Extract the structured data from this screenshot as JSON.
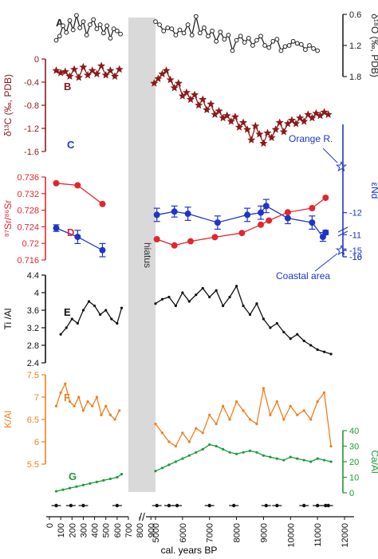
{
  "chart_data": [
    {
      "panel": "A",
      "type": "line",
      "color": "#222222",
      "marker": "circle-open",
      "ylabel": "δ¹⁸O (‰, PDB)",
      "y_axis_side": "right",
      "reversed": true,
      "ylim": [
        0.6,
        1.8
      ],
      "yticks": [
        0.6,
        1.2,
        1.8
      ],
      "x": [
        60,
        90,
        120,
        150,
        180,
        210,
        240,
        270,
        300,
        330,
        360,
        390,
        420,
        450,
        480,
        510,
        540,
        570,
        600,
        630,
        5000,
        5150,
        5300,
        5450,
        5600,
        5750,
        5900,
        6050,
        6200,
        6350,
        6500,
        6650,
        6800,
        6950,
        7100,
        7250,
        7400,
        7550,
        7700,
        7850,
        8000,
        8150,
        8300,
        8450,
        8600,
        8750,
        8900,
        9050,
        9200,
        9350,
        9500,
        9650,
        9800,
        9950,
        10100,
        10250,
        10400,
        10550,
        10700,
        10850,
        11000
      ],
      "y": [
        1.1,
        1.02,
        0.82,
        0.95,
        0.72,
        0.9,
        0.62,
        0.86,
        0.74,
        1.0,
        0.8,
        0.7,
        0.88,
        0.8,
        0.96,
        0.82,
        1.06,
        0.88,
        0.92,
        0.98,
        0.74,
        0.8,
        0.92,
        0.86,
        0.88,
        1.0,
        0.9,
        0.96,
        0.8,
        1.0,
        0.64,
        0.96,
        0.86,
        1.02,
        0.92,
        1.12,
        0.94,
        1.08,
        1.0,
        1.3,
        1.1,
        1.02,
        1.14,
        1.06,
        1.2,
        1.1,
        1.02,
        1.2,
        1.24,
        1.12,
        1.08,
        1.3,
        1.22,
        1.2,
        1.12,
        1.16,
        1.18,
        1.28,
        1.2,
        1.26,
        1.3
      ]
    },
    {
      "panel": "B",
      "type": "line",
      "color": "#8b1a1a",
      "marker": "star",
      "ylabel": "δ¹³C (‰, PDB)",
      "y_axis_side": "left",
      "ylim": [
        -1.6,
        0
      ],
      "yticks": [
        0,
        -0.4,
        -0.8,
        -1.2,
        -1.6
      ],
      "x": [
        60,
        100,
        140,
        180,
        220,
        260,
        300,
        340,
        380,
        420,
        460,
        500,
        540,
        580,
        620,
        4950,
        5100,
        5250,
        5400,
        5550,
        5700,
        5850,
        6000,
        6150,
        6300,
        6450,
        6600,
        6750,
        6900,
        7050,
        7200,
        7350,
        7500,
        7650,
        7800,
        7950,
        8100,
        8250,
        8400,
        8550,
        8700,
        8850,
        9000,
        9150,
        9300,
        9450,
        9600,
        9750,
        9900,
        10050,
        10200,
        10350,
        10500,
        10650,
        10800,
        10950,
        11100,
        11250,
        11400
      ],
      "y": [
        -0.2,
        -0.24,
        -0.22,
        -0.3,
        -0.18,
        -0.32,
        -0.14,
        -0.28,
        -0.2,
        -0.26,
        -0.12,
        -0.28,
        -0.2,
        -0.3,
        -0.18,
        -0.42,
        -0.34,
        -0.26,
        -0.2,
        -0.36,
        -0.5,
        -0.42,
        -0.64,
        -0.58,
        -0.7,
        -0.62,
        -0.8,
        -0.7,
        -0.88,
        -0.78,
        -0.96,
        -0.9,
        -1.02,
        -0.98,
        -1.08,
        -1.0,
        -1.18,
        -1.1,
        -1.22,
        -1.4,
        -1.16,
        -1.3,
        -1.46,
        -1.28,
        -1.36,
        -1.22,
        -1.1,
        -1.26,
        -1.12,
        -1.06,
        -1.12,
        -1.02,
        -1.08,
        -0.96,
        -1.02,
        -0.94,
        -0.98,
        -0.92,
        -0.96
      ]
    },
    {
      "panel": "C",
      "type": "line-errorbar",
      "color": "#1f35c8",
      "marker": "circle-filled",
      "ylabel": "εNd",
      "y_axis_side": "right",
      "reversed": true,
      "ylim": [
        -16,
        -10
      ],
      "yticks": [
        -10,
        -11,
        -12,
        -15,
        -16
      ],
      "axis_break": "between -12 and -15",
      "x": [
        60,
        250,
        470,
        5050,
        5700,
        6200,
        7300,
        8400,
        8900,
        9100,
        9900,
        10800,
        11200,
        11300
      ],
      "y": [
        -11.3,
        -10.9,
        -10.3,
        -11.9,
        -12.05,
        -11.95,
        -11.55,
        -11.9,
        -12.0,
        -12.3,
        -11.75,
        -11.55,
        -10.9,
        -11.1
      ],
      "err": [
        0.15,
        0.3,
        0.3,
        0.3,
        0.25,
        0.3,
        0.3,
        0.3,
        0.3,
        0.3,
        0.25,
        0.3,
        0.2,
        0.1
      ],
      "reference_markers": [
        {
          "label": "Orange R.",
          "y": -10.8
        },
        {
          "label": "Coastal area",
          "y": -15.6
        }
      ]
    },
    {
      "panel": "D",
      "type": "line",
      "color": "#e3262d",
      "marker": "circle-filled",
      "ylabel": "⁸⁷Sr/⁸⁶Sr",
      "y_axis_side": "left",
      "ylim": [
        0.716,
        0.736
      ],
      "yticks": [
        0.736,
        0.732,
        0.728,
        0.724,
        0.72,
        0.716
      ],
      "x": [
        60,
        250,
        470,
        5050,
        5700,
        6300,
        7200,
        8200,
        8900,
        9200,
        9900,
        10800,
        11300
      ],
      "y": [
        0.7345,
        0.734,
        0.7295,
        0.721,
        0.7195,
        0.7205,
        0.7215,
        0.7225,
        0.7245,
        0.7255,
        0.7275,
        0.7285,
        0.731
      ]
    },
    {
      "panel": "E",
      "type": "line",
      "color": "#111111",
      "marker": "dot",
      "ylabel": "Ti /Al",
      "y_axis_side": "left",
      "ylim": [
        2.4,
        4.4
      ],
      "yticks": [
        4.4,
        4,
        3.6,
        3.2,
        2.8,
        2.4
      ],
      "x": [
        100,
        150,
        200,
        250,
        300,
        350,
        400,
        450,
        500,
        550,
        600,
        640,
        5000,
        5250,
        5500,
        5750,
        6000,
        6250,
        6500,
        6750,
        7000,
        7250,
        7500,
        7750,
        8000,
        8250,
        8500,
        8750,
        9000,
        9250,
        9500,
        9750,
        10000,
        10250,
        10500,
        10750,
        11000,
        11250,
        11500
      ],
      "y": [
        3.05,
        3.2,
        3.4,
        3.3,
        3.6,
        3.8,
        3.7,
        3.5,
        3.6,
        3.4,
        3.3,
        3.65,
        3.75,
        3.85,
        3.9,
        3.7,
        4.0,
        3.8,
        3.95,
        4.1,
        3.9,
        4.05,
        3.7,
        3.9,
        4.15,
        3.7,
        3.5,
        3.75,
        3.4,
        3.2,
        3.3,
        3.1,
        2.95,
        3.05,
        2.9,
        2.8,
        2.7,
        2.65,
        2.6
      ]
    },
    {
      "panel": "F",
      "type": "line",
      "color": "#f07f1e",
      "marker": "dot",
      "ylabel": "K/Al",
      "y_axis_side": "left",
      "ylim": [
        5.5,
        7.5
      ],
      "yticks": [
        7.5,
        7,
        6.5,
        6,
        5.5
      ],
      "x": [
        60,
        100,
        140,
        180,
        220,
        260,
        300,
        340,
        380,
        420,
        460,
        500,
        540,
        580,
        620,
        5000,
        5250,
        5500,
        5750,
        6000,
        6250,
        6500,
        6750,
        7000,
        7250,
        7500,
        7750,
        8000,
        8250,
        8500,
        8750,
        9000,
        9250,
        9500,
        9750,
        10000,
        10250,
        10500,
        10750,
        11000,
        11250,
        11500
      ],
      "y": [
        6.8,
        7.1,
        7.3,
        6.9,
        6.8,
        7.0,
        6.7,
        6.9,
        6.8,
        7.0,
        6.6,
        6.8,
        6.6,
        6.5,
        6.7,
        6.4,
        6.2,
        6.0,
        5.9,
        6.2,
        6.0,
        6.3,
        6.2,
        6.6,
        6.4,
        6.8,
        6.5,
        6.9,
        6.7,
        6.5,
        6.4,
        7.2,
        6.6,
        6.9,
        6.5,
        6.8,
        6.6,
        6.7,
        6.5,
        6.9,
        7.1,
        5.9
      ]
    },
    {
      "panel": "G",
      "type": "line",
      "color": "#1e9a3a",
      "marker": "dot",
      "ylabel": "Ca/Al",
      "y_axis_side": "right",
      "ylim": [
        0,
        40
      ],
      "yticks": [
        0,
        10,
        20,
        30,
        40
      ],
      "x": [
        60,
        120,
        180,
        240,
        300,
        360,
        420,
        480,
        540,
        600,
        640,
        5000,
        5250,
        5500,
        5750,
        6000,
        6250,
        6500,
        6750,
        7000,
        7250,
        7500,
        7750,
        8000,
        8250,
        8500,
        8750,
        9000,
        9250,
        9500,
        9750,
        10000,
        10250,
        10500,
        10750,
        11000,
        11250,
        11500
      ],
      "y": [
        1,
        2,
        3,
        4,
        5,
        6,
        7,
        8,
        9,
        10,
        12,
        14,
        16,
        18,
        20,
        22,
        24,
        26,
        28,
        31,
        30,
        28,
        26,
        25,
        26,
        27,
        26,
        24,
        23,
        22,
        21,
        23,
        22,
        21,
        20,
        22,
        21,
        20
      ]
    }
  ],
  "x_axis": {
    "label": "cal. years BP",
    "ticks_left": [
      "0",
      "100",
      "200",
      "300",
      "400",
      "500",
      "600",
      "700",
      "800",
      "900"
    ],
    "ticks_right": [
      "5000",
      "6000",
      "7000",
      "8000",
      "9000",
      "10000",
      "11000",
      "12000"
    ],
    "break_symbol": "//"
  },
  "hiatus_label": "hiatus",
  "dating_points": [
    60,
    190,
    300,
    600,
    5050,
    5500,
    5800,
    7000,
    7900,
    9100,
    9500,
    10500,
    11000,
    11300,
    11400
  ],
  "colors": {
    "A": "#222222",
    "B": "#8b1a1a",
    "C": "#1f35c8",
    "D": "#e3262d",
    "E": "#111111",
    "F": "#f07f1e",
    "G": "#1e9a3a",
    "hiatus": "#d9d9d9"
  }
}
